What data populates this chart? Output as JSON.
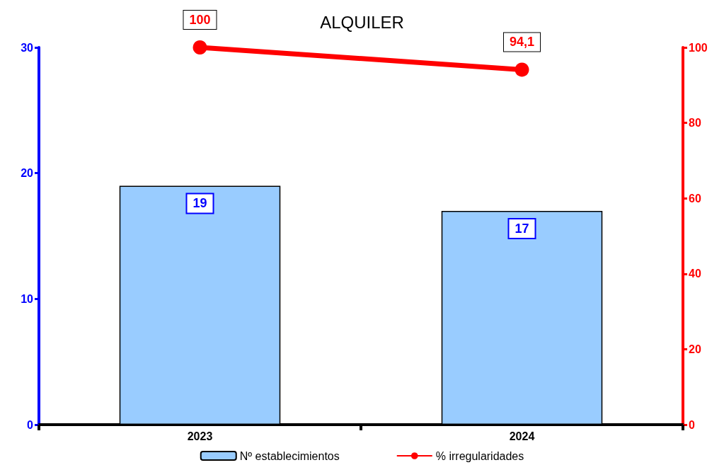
{
  "chart_data": {
    "type": "bar",
    "title": "ALQUILER",
    "categories": [
      "2023",
      "2024"
    ],
    "series": [
      {
        "name": "Nº establecimientos",
        "color": "#99ccff",
        "values": [
          19,
          17
        ],
        "value_labels": [
          "19",
          "17"
        ]
      },
      {
        "name": "% irregularidades",
        "type": "line",
        "axis": "y2",
        "color": "#ff0000",
        "values": [
          100,
          94.1
        ],
        "value_labels": [
          "100",
          "94,1"
        ],
        "marker": "circle"
      }
    ],
    "ylim": [
      0,
      30
    ],
    "yticks": [
      0,
      10,
      20,
      30
    ],
    "y2lim": [
      0,
      100
    ],
    "y2ticks": [
      0,
      20,
      40,
      60,
      80,
      100
    ],
    "grid": false,
    "legend": "bottom"
  }
}
